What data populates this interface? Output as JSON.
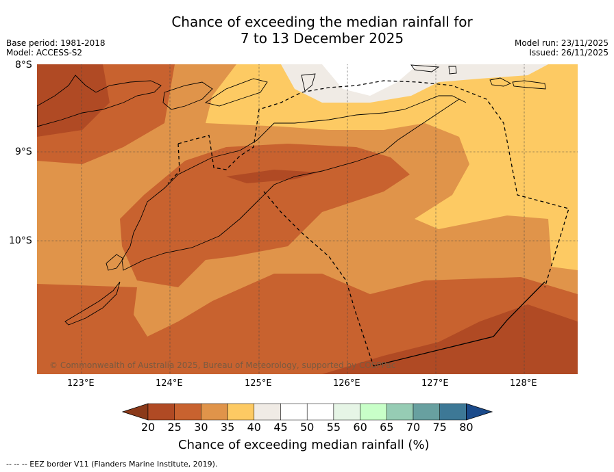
{
  "title": {
    "line1": "Chance of exceeding the median rainfall for",
    "line2": "7 to 13 December 2025"
  },
  "meta_left": {
    "base_period": "Base period: 1981-2018",
    "model": "Model: ACCESS-S2"
  },
  "meta_right": {
    "model_run": "Model run: 23/11/2025",
    "issued": "Issued: 26/11/2025"
  },
  "map": {
    "lat_labels": [
      "8°S",
      "9°S",
      "10°S"
    ],
    "lon_labels": [
      "123°E",
      "124°E",
      "125°E",
      "126°E",
      "127°E",
      "128°E"
    ],
    "copyright": "© Commonwealth of Australia 2025, Bureau of Meteorology, supported by COSPPac"
  },
  "colorbar": {
    "ticks": [
      "20",
      "25",
      "30",
      "35",
      "40",
      "45",
      "50",
      "55",
      "60",
      "65",
      "70",
      "75",
      "80"
    ],
    "colors": [
      "#8b3a1a",
      "#b04a24",
      "#c8622f",
      "#e0944a",
      "#fdca63",
      "#f0ebe5",
      "#ffffff",
      "#ffffff",
      "#e6f5e6",
      "#c8ffc8",
      "#96ccb4",
      "#68a0a0",
      "#3d7896",
      "#1a4a8a"
    ],
    "label": "Chance of exceeding median rainfall (%)"
  },
  "footer": "--  --  -- EEZ border V11 (Flanders Marine Institute, 2019)."
}
